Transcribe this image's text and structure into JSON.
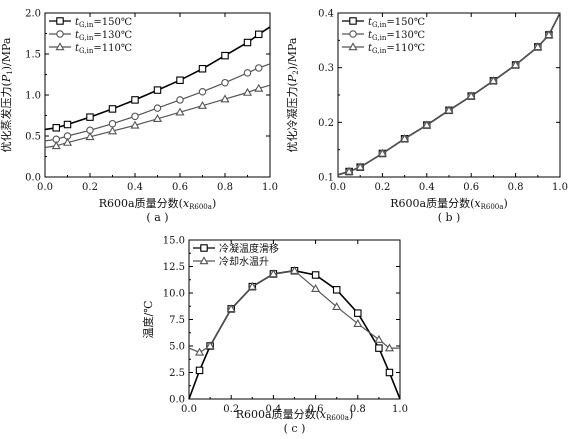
{
  "chart_data": [
    {
      "type": "line",
      "panel_label": "( a )",
      "xlabel": "R600a质量分数(xR600a)",
      "xlabel_parts": {
        "main": "R600a质量分数(",
        "var": "x",
        "sub": "R600a",
        "close": ")"
      },
      "ylabel": "优化蒸发压力(P1)/MPa",
      "ylabel_parts": {
        "pre": "优化蒸发压力(",
        "var": "P",
        "sub": "1",
        "post": ")/MPa"
      },
      "xlim": [
        0.0,
        1.0
      ],
      "ylim": [
        0.0,
        2.0
      ],
      "xticks": [
        "0.0",
        "0.2",
        "0.4",
        "0.6",
        "0.8",
        "1.0"
      ],
      "yticks": [
        "0.0",
        "0.5",
        "1.0",
        "1.5",
        "2.0"
      ],
      "legend_position": "top-left",
      "series": [
        {
          "name": "tG,in=150℃",
          "legend_parts": {
            "var": "t",
            "sub": "G,in",
            "rest": "=150℃"
          },
          "marker": "square",
          "x": [
            0.0,
            0.05,
            0.1,
            0.2,
            0.3,
            0.4,
            0.5,
            0.6,
            0.7,
            0.8,
            0.9,
            0.95,
            1.0
          ],
          "y": [
            0.58,
            0.6,
            0.64,
            0.73,
            0.83,
            0.94,
            1.06,
            1.18,
            1.32,
            1.48,
            1.64,
            1.74,
            1.83
          ]
        },
        {
          "name": "tG,in=130℃",
          "legend_parts": {
            "var": "t",
            "sub": "G,in",
            "rest": "=130℃"
          },
          "marker": "circle",
          "x": [
            0.0,
            0.05,
            0.1,
            0.2,
            0.3,
            0.4,
            0.5,
            0.6,
            0.7,
            0.8,
            0.9,
            0.95,
            1.0
          ],
          "y": [
            0.44,
            0.46,
            0.5,
            0.57,
            0.65,
            0.74,
            0.84,
            0.94,
            1.04,
            1.15,
            1.27,
            1.33,
            1.38
          ]
        },
        {
          "name": "tG,in=110℃",
          "legend_parts": {
            "var": "t",
            "sub": "G,in",
            "rest": "=110℃"
          },
          "marker": "triangle",
          "x": [
            0.0,
            0.05,
            0.1,
            0.2,
            0.3,
            0.4,
            0.5,
            0.6,
            0.7,
            0.8,
            0.9,
            0.95,
            1.0
          ],
          "y": [
            0.36,
            0.38,
            0.42,
            0.49,
            0.56,
            0.63,
            0.71,
            0.79,
            0.87,
            0.95,
            1.03,
            1.08,
            1.12
          ]
        }
      ]
    },
    {
      "type": "line",
      "panel_label": "( b )",
      "xlabel": "R600a质量分数(xR600a)",
      "xlabel_parts": {
        "main": "R600a质量分数(",
        "var": "x",
        "sub": "R600a",
        "close": ")"
      },
      "ylabel": "优化冷凝压力(P2)/MPa",
      "ylabel_parts": {
        "pre": "优化冷凝压力(",
        "var": "P",
        "sub": "2",
        "post": ")/MPa"
      },
      "xlim": [
        0.0,
        1.0
      ],
      "ylim": [
        0.1,
        0.4
      ],
      "xticks": [
        "0.0",
        "0.2",
        "0.4",
        "0.6",
        "0.8",
        "1.0"
      ],
      "yticks": [
        "0.1",
        "0.2",
        "0.3",
        "0.4"
      ],
      "legend_position": "top-left",
      "series": [
        {
          "name": "tG,in=150℃",
          "legend_parts": {
            "var": "t",
            "sub": "G,in",
            "rest": "=150℃"
          },
          "marker": "square",
          "x": [
            0.0,
            0.05,
            0.1,
            0.2,
            0.3,
            0.4,
            0.5,
            0.6,
            0.7,
            0.8,
            0.9,
            0.95,
            1.0
          ],
          "y": [
            0.104,
            0.11,
            0.118,
            0.143,
            0.17,
            0.195,
            0.222,
            0.248,
            0.276,
            0.305,
            0.338,
            0.36,
            0.4
          ]
        },
        {
          "name": "tG,in=130℃",
          "legend_parts": {
            "var": "t",
            "sub": "G,in",
            "rest": "=130℃"
          },
          "marker": "circle",
          "x": [
            0.0,
            0.05,
            0.1,
            0.2,
            0.3,
            0.4,
            0.5,
            0.6,
            0.7,
            0.8,
            0.9,
            0.95,
            1.0
          ],
          "y": [
            0.104,
            0.11,
            0.118,
            0.143,
            0.17,
            0.195,
            0.222,
            0.248,
            0.276,
            0.305,
            0.338,
            0.36,
            0.4
          ]
        },
        {
          "name": "tG,in=110℃",
          "legend_parts": {
            "var": "t",
            "sub": "G,in",
            "rest": "=110℃"
          },
          "marker": "triangle",
          "x": [
            0.0,
            0.05,
            0.1,
            0.2,
            0.3,
            0.4,
            0.5,
            0.6,
            0.7,
            0.8,
            0.9,
            0.95,
            1.0
          ],
          "y": [
            0.104,
            0.11,
            0.118,
            0.143,
            0.17,
            0.195,
            0.222,
            0.248,
            0.276,
            0.305,
            0.338,
            0.36,
            0.4
          ]
        }
      ]
    },
    {
      "type": "line",
      "panel_label": "( c )",
      "xlabel": "R600a质量分数(xR600a)",
      "xlabel_parts": {
        "main": "R600a质量分数(",
        "var": "x",
        "sub": "R600a",
        "close": ")"
      },
      "ylabel": "温度/℃",
      "ylabel_parts": {
        "pre": "温度/℃",
        "var": "",
        "sub": "",
        "post": ""
      },
      "xlim": [
        0.0,
        1.0
      ],
      "ylim": [
        0.0,
        15.0
      ],
      "xticks": [
        "0.0",
        "0.2",
        "0.4",
        "0.6",
        "0.8",
        "1.0"
      ],
      "yticks": [
        "0.0",
        "2.5",
        "5.0",
        "7.5",
        "10.0",
        "12.5",
        "15.0"
      ],
      "legend_position": "top-left",
      "series": [
        {
          "name": "冷凝温度滑移",
          "marker": "square",
          "x": [
            0.0,
            0.05,
            0.1,
            0.2,
            0.3,
            0.4,
            0.5,
            0.6,
            0.7,
            0.8,
            0.9,
            0.95,
            1.0
          ],
          "y": [
            0.0,
            2.7,
            5.0,
            8.5,
            10.6,
            11.8,
            12.1,
            11.7,
            10.3,
            8.1,
            4.8,
            2.5,
            0.0
          ]
        },
        {
          "name": "冷却水温升",
          "marker": "triangle",
          "x": [
            0.0,
            0.05,
            0.1,
            0.2,
            0.3,
            0.4,
            0.5,
            0.6,
            0.7,
            0.8,
            0.9,
            0.95,
            1.0
          ],
          "y": [
            4.8,
            4.4,
            5.0,
            8.5,
            10.6,
            11.8,
            12.1,
            10.4,
            8.7,
            7.1,
            5.6,
            4.8,
            4.8
          ]
        }
      ]
    }
  ]
}
